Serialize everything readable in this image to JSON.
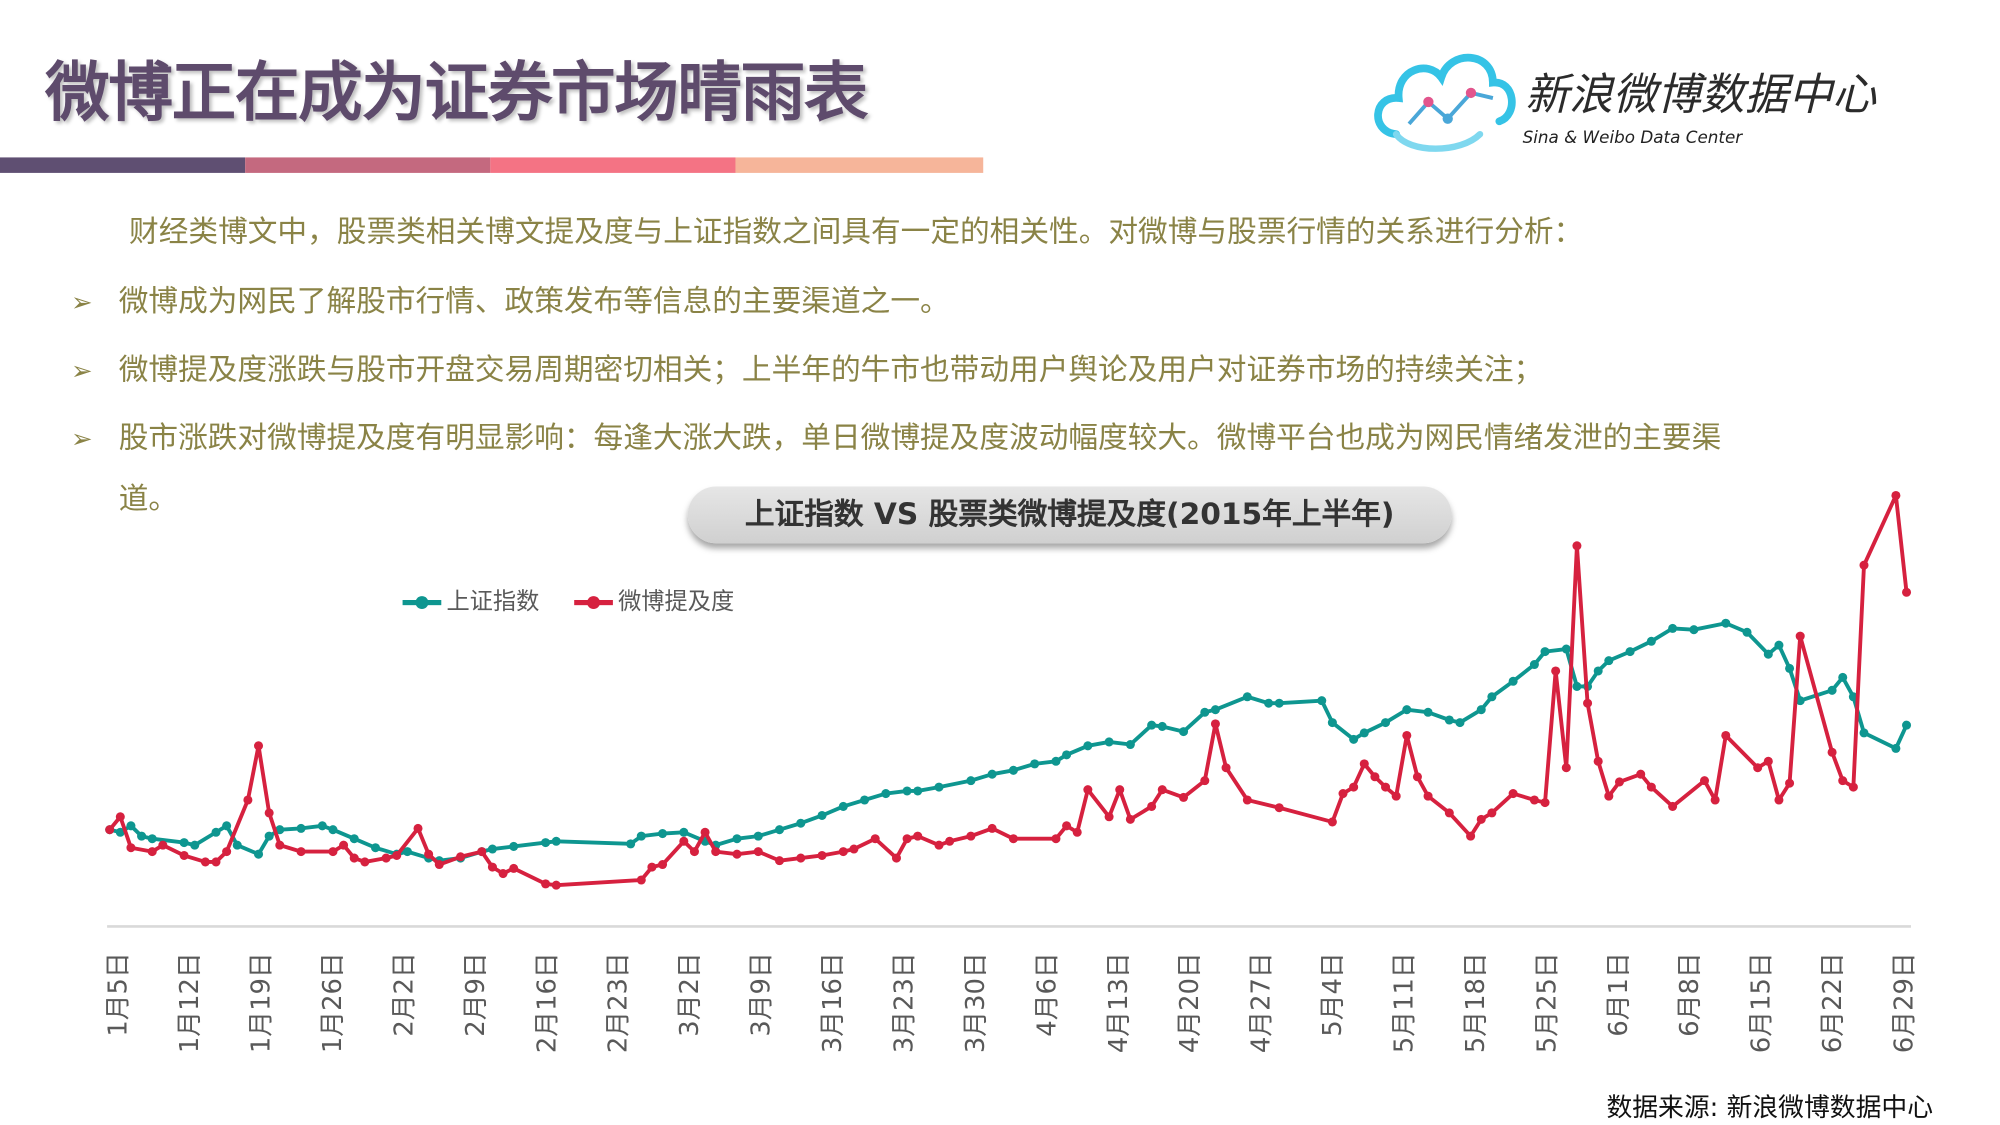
{
  "title": "微博正在成为证券市场晴雨表",
  "title_bar_colors": [
    "#5f4f72",
    "#c4697f",
    "#f47384",
    "#f6b59a"
  ],
  "logo": {
    "cn": "新浪微博数据中心",
    "en": "Sina & Weibo Data Center"
  },
  "intro": "财经类博文中，股票类相关博文提及度与上证指数之间具有一定的相关性。对微博与股票行情的关系进行分析：",
  "bullets": [
    "微博成为网民了解股市行情、政策发布等信息的主要渠道之一。",
    "微博提及度涨跌与股市开盘交易周期密切相关；上半年的牛市也带动用户舆论及用户对证券市场的持续关注；",
    "股市涨跌对微博提及度有明显影响：每逢大涨大跌，单日微博提及度波动幅度较大。微博平台也成为网民情绪发泄的主要渠"
  ],
  "bullet_continuation": "道。",
  "source": "数据来源: 新浪微博数据中心",
  "chart_data": {
    "type": "line",
    "title": "上证指数 VS 股票类微博提及度(2015年上半年)",
    "xlabel": "",
    "ylabel": "",
    "x_unit": "days since 1月5日",
    "y_unit": "relative (no axis scale shown)",
    "ylim": [
      0,
      340
    ],
    "xlim": [
      0,
      169
    ],
    "grid": false,
    "legend_position": "top-left",
    "tick_labels": [
      "1月5日",
      "1月12日",
      "1月19日",
      "1月26日",
      "2月2日",
      "2月9日",
      "2月16日",
      "2月23日",
      "3月2日",
      "3月9日",
      "3月16日",
      "3月23日",
      "3月30日",
      "4月6日",
      "4月13日",
      "4月20日",
      "4月27日",
      "5月4日",
      "5月11日",
      "5月18日",
      "5月25日",
      "6月1日",
      "6月8日",
      "6月15日",
      "6月22日",
      "6月29日"
    ],
    "series": [
      {
        "name": "上证指数",
        "color": "#0e9690",
        "x": [
          0,
          1,
          2,
          3,
          4,
          7,
          8,
          10,
          11,
          12,
          14,
          15,
          16,
          18,
          20,
          21,
          23,
          25,
          27,
          28,
          30,
          31,
          33,
          35,
          36,
          38,
          41,
          42,
          49,
          50,
          52,
          54,
          56,
          57,
          59,
          61,
          63,
          65,
          67,
          69,
          71,
          73,
          75,
          76,
          78,
          81,
          83,
          85,
          87,
          89,
          90,
          92,
          94,
          96,
          98,
          99,
          101,
          103,
          104,
          107,
          109,
          110,
          114,
          115,
          117,
          118,
          120,
          122,
          124,
          126,
          127,
          129,
          130,
          132,
          134,
          135,
          137,
          138,
          139,
          140,
          141,
          143,
          145,
          147,
          149,
          152,
          154,
          156,
          157,
          158,
          159,
          162,
          163,
          164,
          165,
          168,
          169
        ],
        "values": [
          75,
          73,
          78,
          70,
          68,
          65,
          63,
          73,
          78,
          63,
          56,
          70,
          75,
          76,
          78,
          75,
          68,
          61,
          56,
          58,
          53,
          51,
          53,
          58,
          60,
          62,
          65,
          66,
          64,
          70,
          72,
          73,
          66,
          63,
          68,
          70,
          75,
          80,
          86,
          93,
          98,
          103,
          105,
          105,
          108,
          113,
          118,
          121,
          126,
          128,
          133,
          140,
          143,
          141,
          156,
          155,
          151,
          166,
          168,
          178,
          173,
          173,
          175,
          158,
          145,
          150,
          158,
          168,
          166,
          160,
          158,
          168,
          178,
          190,
          203,
          213,
          215,
          186,
          186,
          198,
          206,
          213,
          221,
          231,
          230,
          235,
          228,
          211,
          218,
          200,
          175,
          183,
          193,
          178,
          150,
          138,
          156
        ]
      },
      {
        "name": "微博提及度",
        "color": "#d6213f",
        "x": [
          0,
          1,
          2,
          4,
          5,
          7,
          9,
          10,
          11,
          13,
          14,
          15,
          16,
          18,
          21,
          22,
          23,
          24,
          26,
          27,
          29,
          30,
          31,
          33,
          35,
          36,
          37,
          38,
          41,
          42,
          50,
          51,
          52,
          54,
          55,
          56,
          57,
          59,
          61,
          63,
          65,
          67,
          69,
          70,
          72,
          74,
          75,
          76,
          78,
          79,
          81,
          83,
          85,
          89,
          90,
          91,
          92,
          94,
          95,
          96,
          98,
          99,
          101,
          103,
          104,
          105,
          107,
          110,
          115,
          116,
          117,
          118,
          119,
          120,
          121,
          122,
          123,
          124,
          126,
          128,
          129,
          130,
          132,
          134,
          135,
          136,
          137,
          138,
          139,
          140,
          141,
          142,
          144,
          145,
          147,
          150,
          151,
          152,
          155,
          156,
          157,
          158,
          159,
          162,
          163,
          164,
          165,
          168,
          169
        ],
        "values": [
          75,
          85,
          61,
          58,
          63,
          55,
          50,
          50,
          58,
          98,
          140,
          88,
          63,
          58,
          58,
          63,
          53,
          50,
          53,
          55,
          76,
          56,
          48,
          54,
          58,
          46,
          41,
          45,
          33,
          32,
          36,
          46,
          48,
          66,
          58,
          73,
          58,
          56,
          58,
          51,
          53,
          55,
          58,
          60,
          68,
          53,
          68,
          70,
          63,
          66,
          70,
          76,
          68,
          68,
          78,
          73,
          106,
          85,
          106,
          83,
          93,
          106,
          100,
          113,
          157,
          123,
          98,
          92,
          81,
          103,
          108,
          126,
          116,
          108,
          101,
          148,
          116,
          101,
          88,
          70,
          83,
          88,
          103,
          98,
          96,
          198,
          123,
          295,
          173,
          128,
          101,
          112,
          118,
          108,
          93,
          113,
          98,
          148,
          123,
          128,
          98,
          111,
          225,
          135,
          113,
          108,
          280,
          334,
          259
        ]
      }
    ]
  }
}
